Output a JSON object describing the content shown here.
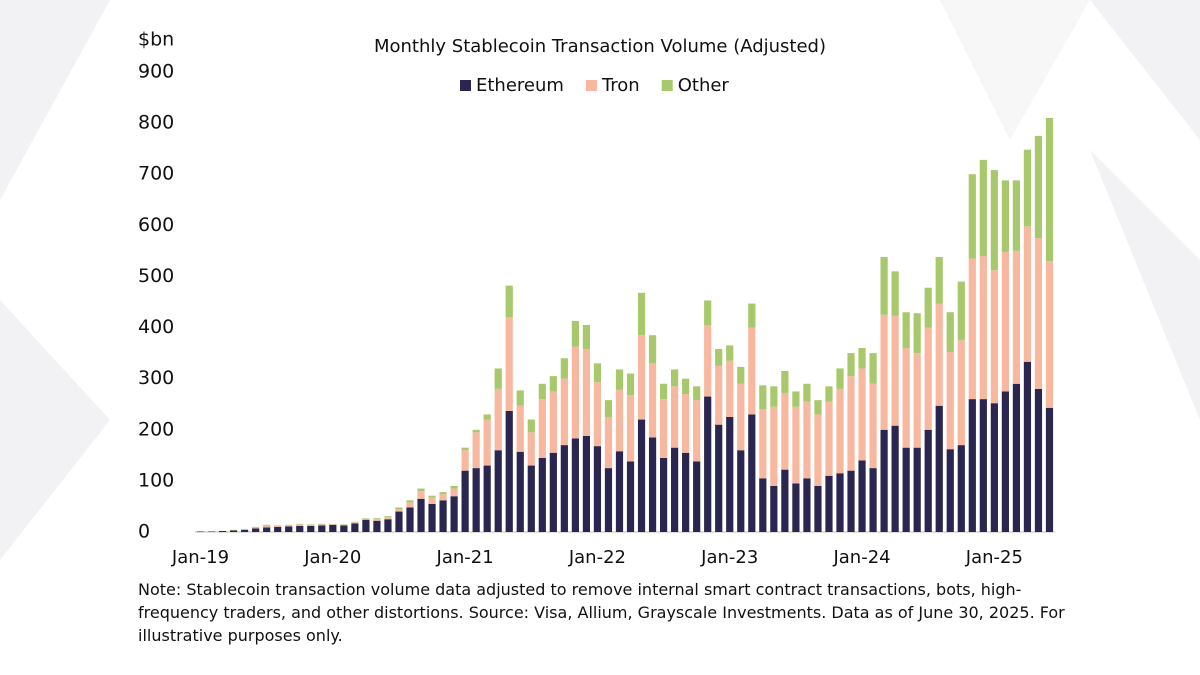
{
  "chart_data": {
    "type": "stacked_bar",
    "title": "Monthly Stablecoin Transaction Volume (Adjusted)",
    "y_label": "$bn",
    "note": "Note: Stablecoin transaction volume data adjusted to remove internal smart contract transactions, bots, high-frequency traders, and other distortions. Source: Visa, Allium, Grayscale Investments. Data as of June 30, 2025. For illustrative purposes only.",
    "categories": [
      "Jan-19",
      null,
      null,
      null,
      null,
      null,
      null,
      null,
      null,
      null,
      null,
      null,
      "Jan-20",
      null,
      null,
      null,
      null,
      null,
      null,
      null,
      null,
      null,
      null,
      null,
      "Jan-21",
      null,
      null,
      null,
      null,
      null,
      null,
      null,
      null,
      null,
      null,
      null,
      "Jan-22",
      null,
      null,
      null,
      null,
      null,
      null,
      null,
      null,
      null,
      null,
      null,
      "Jan-23",
      null,
      null,
      null,
      null,
      null,
      null,
      null,
      null,
      null,
      null,
      null,
      "Jan-24",
      null,
      null,
      null,
      null,
      null,
      null,
      null,
      null,
      null,
      null,
      null,
      "Jan-25",
      null,
      null,
      null,
      null,
      null
    ],
    "series": [
      {
        "name": "Ethereum",
        "color": "#2b2650",
        "values": [
          1,
          1,
          2,
          3,
          4,
          7,
          9,
          10,
          11,
          12,
          12,
          13,
          14,
          13,
          17,
          24,
          22,
          25,
          40,
          48,
          65,
          55,
          62,
          70,
          120,
          125,
          130,
          160,
          237,
          157,
          130,
          145,
          155,
          170,
          183,
          188,
          168,
          125,
          158,
          138,
          220,
          185,
          145,
          165,
          155,
          138,
          265,
          210,
          225,
          160,
          230,
          105,
          90,
          122,
          95,
          105,
          90,
          110,
          115,
          120,
          140,
          125,
          200,
          208,
          165,
          165,
          200,
          247,
          162,
          170,
          260,
          260,
          252,
          275,
          290,
          333,
          280,
          243
        ]
      },
      {
        "name": "Tron",
        "color": "#f8b8a0",
        "values": [
          0,
          0,
          0,
          0,
          1,
          2,
          3,
          2,
          2,
          3,
          2,
          2,
          1,
          1,
          2,
          2,
          3,
          4,
          5,
          10,
          15,
          12,
          12,
          15,
          40,
          70,
          90,
          120,
          183,
          90,
          65,
          115,
          120,
          130,
          180,
          170,
          125,
          100,
          120,
          130,
          165,
          145,
          115,
          120,
          115,
          120,
          140,
          115,
          110,
          130,
          170,
          135,
          155,
          150,
          150,
          150,
          140,
          145,
          165,
          185,
          180,
          165,
          225,
          215,
          195,
          185,
          200,
          200,
          190,
          205,
          275,
          280,
          260,
          273,
          260,
          265,
          295,
          287
        ]
      },
      {
        "name": "Other",
        "color": "#a8c86c",
        "values": [
          0,
          0,
          0,
          1,
          1,
          1,
          2,
          1,
          1,
          1,
          1,
          1,
          1,
          1,
          1,
          1,
          2,
          2,
          3,
          4,
          5,
          4,
          4,
          5,
          5,
          5,
          10,
          40,
          62,
          30,
          25,
          30,
          30,
          40,
          50,
          47,
          37,
          33,
          40,
          42,
          83,
          55,
          30,
          33,
          30,
          27,
          48,
          33,
          30,
          33,
          47,
          47,
          40,
          43,
          30,
          35,
          28,
          30,
          40,
          45,
          40,
          60,
          113,
          87,
          70,
          78,
          78,
          91,
          78,
          115,
          165,
          188,
          196,
          140,
          138,
          150,
          200,
          280
        ]
      }
    ],
    "ylim": [
      0,
      900
    ],
    "yticks": [
      0,
      100,
      200,
      300,
      400,
      500,
      600,
      700,
      800,
      900
    ],
    "legend": "top"
  }
}
